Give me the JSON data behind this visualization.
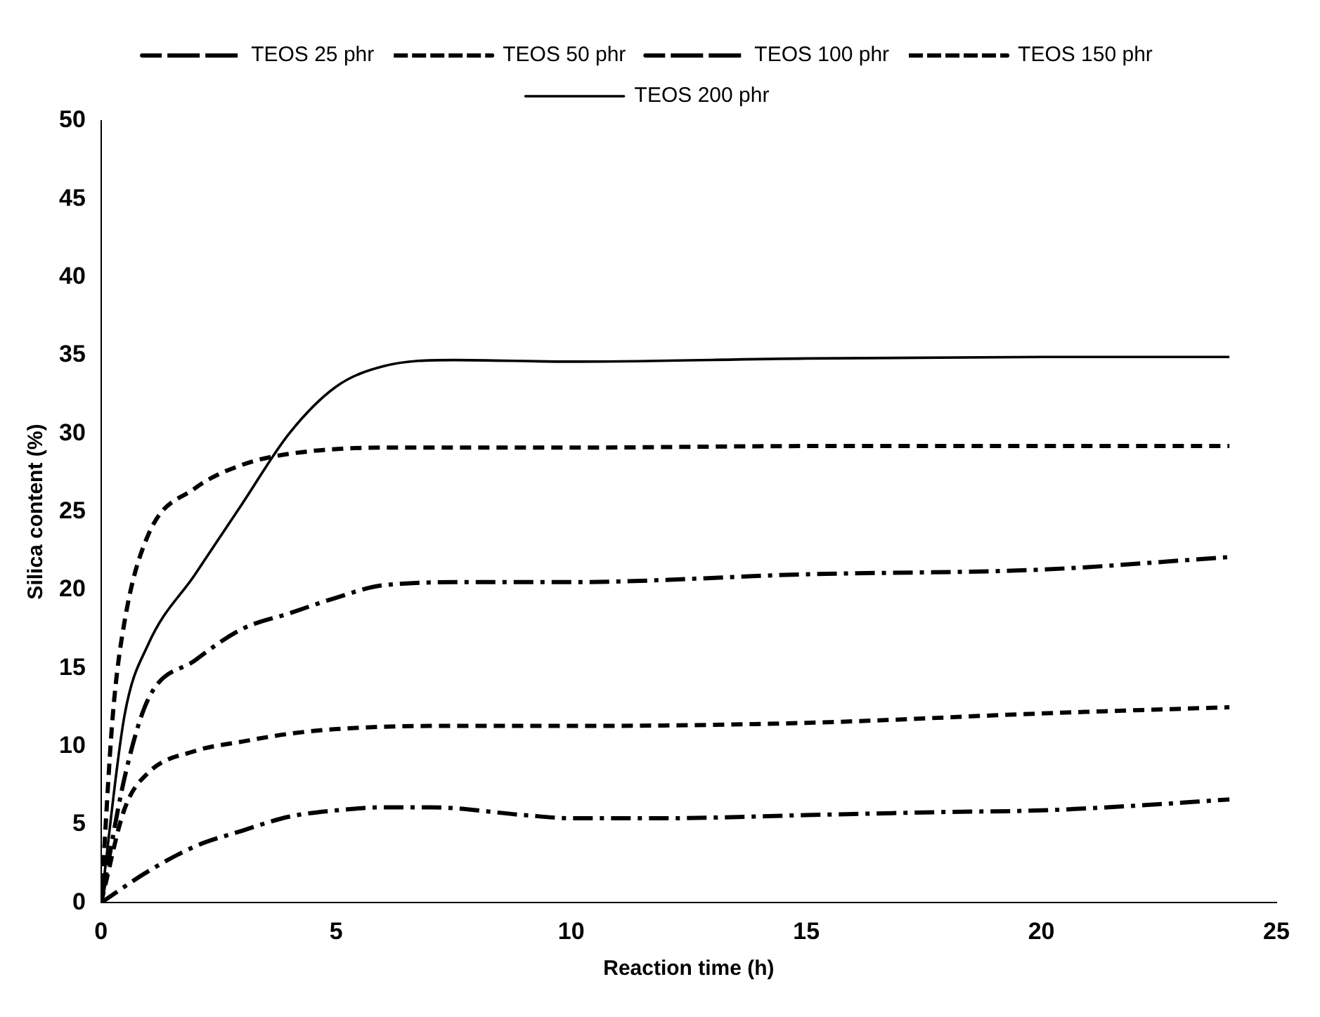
{
  "chart_data": {
    "type": "line",
    "xlabel": "Reaction time (h)",
    "ylabel": "Silica content (%)",
    "xlim": [
      0,
      25
    ],
    "xticks": [
      0,
      5,
      10,
      15,
      20,
      25
    ],
    "ylim": [
      0,
      50
    ],
    "yticks": [
      0,
      5,
      10,
      15,
      20,
      25,
      30,
      35,
      40,
      45,
      50
    ],
    "grid": false,
    "legend": "top",
    "marker": "none",
    "series": [
      {
        "name": "TEOS 25 phr",
        "color": "#000000",
        "line_style": "dotted",
        "x": [
          0,
          1,
          2,
          3,
          4,
          5,
          6,
          7,
          9,
          10,
          12,
          15,
          18,
          20,
          22,
          24
        ],
        "values": [
          0,
          2,
          3.6,
          4.6,
          5.5,
          5.9,
          6.1,
          6.1,
          5.6,
          5.4,
          5.4,
          5.6,
          5.8,
          5.9,
          6.2,
          6.6
        ]
      },
      {
        "name": "TEOS 50 phr",
        "color": "#000000",
        "line_style": "dashed",
        "x": [
          0,
          0.5,
          1,
          2,
          3,
          4,
          5,
          7,
          10,
          15,
          20,
          24
        ],
        "values": [
          0,
          6,
          8.3,
          9.7,
          10.3,
          10.8,
          11.1,
          11.3,
          11.3,
          11.5,
          12.1,
          12.5
        ]
      },
      {
        "name": "TEOS 100 phr",
        "color": "#000000",
        "line_style": "dotted",
        "x": [
          0,
          0.5,
          1,
          2,
          3,
          4,
          5,
          6,
          8,
          10,
          15,
          20,
          24
        ],
        "values": [
          0,
          8,
          13,
          15.5,
          17.5,
          18.5,
          19.5,
          20.3,
          20.5,
          20.5,
          21,
          21.3,
          22.1
        ]
      },
      {
        "name": "TEOS 150 phr",
        "color": "#000000",
        "line_style": "dashed",
        "x": [
          0,
          0.25,
          0.5,
          1,
          2,
          3,
          4,
          6,
          10,
          15,
          20,
          24
        ],
        "values": [
          0,
          12,
          18,
          23.5,
          26.5,
          28,
          28.7,
          29.1,
          29.1,
          29.2,
          29.2,
          29.2
        ]
      },
      {
        "name": "TEOS 200 phr",
        "color": "#000000",
        "line_style": "solid",
        "x": [
          0,
          0.5,
          1,
          2,
          3,
          4,
          5,
          6,
          7.5,
          10,
          15,
          20,
          24
        ],
        "values": [
          0,
          12,
          16.5,
          21,
          25.5,
          30,
          33,
          34.3,
          34.7,
          34.6,
          34.8,
          34.9,
          34.9
        ]
      }
    ]
  }
}
